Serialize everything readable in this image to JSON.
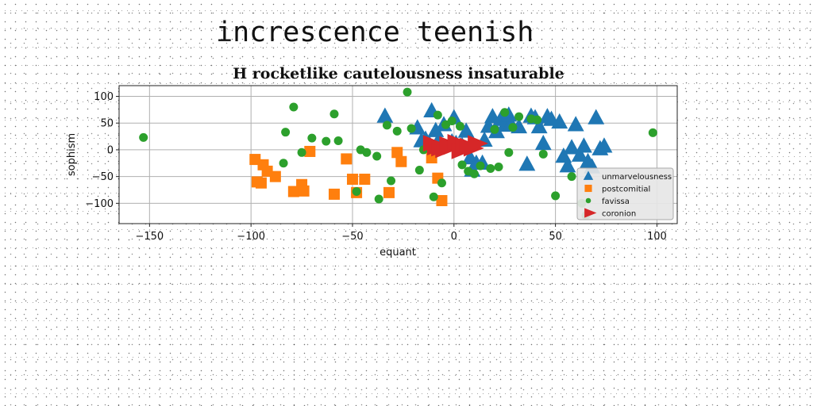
{
  "page": {
    "title": "increscence teenish"
  },
  "chart_data": {
    "type": "scatter",
    "title": "H rocketlike cautelousness insaturable",
    "xlabel": "equant",
    "ylabel": "sophism",
    "xlim": [
      -165,
      110
    ],
    "ylim": [
      -138,
      120
    ],
    "xticks": [
      -150,
      -100,
      -50,
      0,
      50,
      100
    ],
    "yticks": [
      -100,
      -50,
      0,
      50,
      100
    ],
    "xtick_labels": [
      "−150",
      "−100",
      "−50",
      "0",
      "50",
      "100"
    ],
    "ytick_labels": [
      "−100",
      "−50",
      "0",
      "50",
      "100"
    ],
    "grid": true,
    "legend_position": "lower-right",
    "series": [
      {
        "name": "unmarvelousness",
        "marker": "triangle-up",
        "color": "#1f77b4",
        "x": [
          -34,
          -18,
          -16,
          -14,
          -11,
          -9,
          -8,
          -5,
          -1,
          0,
          1,
          4,
          8,
          9,
          11,
          14,
          17,
          19,
          21,
          23,
          25,
          28,
          32,
          36,
          38,
          40,
          42,
          44,
          46,
          48,
          52,
          54,
          56,
          58,
          60,
          62,
          64,
          66,
          68,
          70,
          72,
          74,
          -12,
          6,
          15,
          27
        ],
        "y": [
          63,
          41,
          17,
          20,
          73,
          36,
          15,
          47,
          15,
          60,
          12,
          8,
          -15,
          -38,
          -25,
          -25,
          44,
          62,
          34,
          57,
          46,
          49,
          43,
          -27,
          63,
          60,
          43,
          12,
          62,
          57,
          52,
          -12,
          -30,
          4,
          47,
          -10,
          7,
          -22,
          -32,
          60,
          2,
          7,
          10,
          35,
          18,
          65
        ]
      },
      {
        "name": "postcomitial",
        "marker": "square",
        "color": "#ff7f0e",
        "x": [
          -98,
          -97,
          -95,
          -94,
          -92,
          -88,
          -79,
          -75,
          -74,
          -71,
          -59,
          -53,
          -50,
          -48,
          -44,
          -32,
          -28,
          -26,
          -11,
          -8,
          -6
        ],
        "y": [
          -18,
          -60,
          -62,
          -28,
          -40,
          -50,
          -78,
          -65,
          -77,
          -3,
          -83,
          -17,
          -55,
          -80,
          -55,
          -80,
          -5,
          -22,
          -15,
          -53,
          -95
        ]
      },
      {
        "name": "favissa",
        "marker": "circle",
        "color": "#2ca02c",
        "x": [
          -153,
          -84,
          -83,
          -79,
          -75,
          -70,
          -63,
          -59,
          -57,
          -48,
          -46,
          -43,
          -38,
          -37,
          -33,
          -31,
          -28,
          -23,
          -21,
          -17,
          -15,
          -10,
          -8,
          -6,
          -4,
          -1,
          3,
          4,
          7,
          10,
          13,
          18,
          20,
          22,
          25,
          27,
          29,
          32,
          38,
          41,
          44,
          50,
          58,
          63,
          65,
          98
        ],
        "y": [
          23,
          -25,
          33,
          80,
          -5,
          22,
          16,
          67,
          17,
          -78,
          0,
          -5,
          -12,
          -92,
          46,
          -58,
          35,
          108,
          40,
          -38,
          0,
          -88,
          65,
          -62,
          47,
          54,
          44,
          -28,
          -40,
          -45,
          -30,
          -35,
          38,
          -32,
          70,
          -5,
          42,
          62,
          58,
          56,
          -8,
          -86,
          -50,
          -100,
          -123,
          32
        ]
      },
      {
        "name": "coronion",
        "marker": "triangle-right",
        "color": "#d62728",
        "x": [
          -12,
          -10,
          -8,
          -6,
          -4,
          -2,
          0,
          2,
          4,
          6,
          8,
          10
        ],
        "y": [
          12,
          5,
          3,
          0,
          10,
          6,
          14,
          -2,
          8,
          7,
          3,
          12
        ]
      }
    ]
  }
}
